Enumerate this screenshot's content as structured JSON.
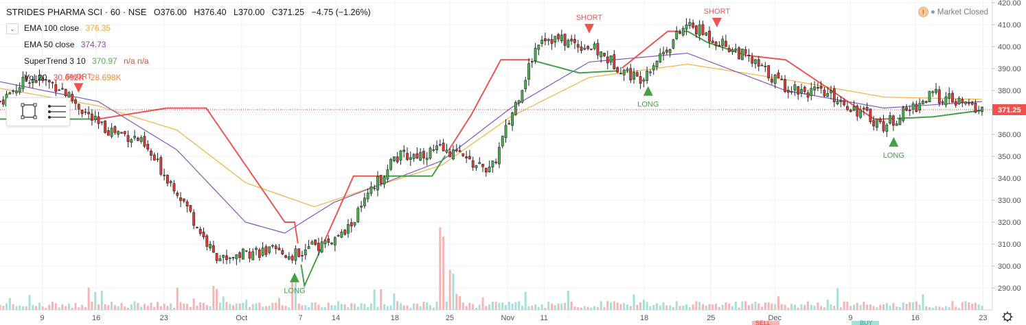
{
  "header": {
    "symbol": "STRIDES PHARMA SCI · 60 · NSE",
    "open": "O376.00",
    "high": "H376.40",
    "low": "L370.00",
    "close": "C371.25",
    "change": "−4.75 (−1.26%)",
    "market_status": "Market Closed"
  },
  "indicators": [
    {
      "label": "EMA 100 close",
      "value": "376.35",
      "color": "#f5a623"
    },
    {
      "label": "EMA 50 close",
      "value": "374.73",
      "color": "#8e44ad"
    },
    {
      "label": "SuperTrend 3 10",
      "value": "370.97",
      "extra": "n/a  n/a",
      "color": "#4caf50"
    },
    {
      "label": "Vol 20",
      "value": "30.692K",
      "extra": "28.698K",
      "color": "#f44336"
    }
  ],
  "price_tag": "371.25",
  "bottom_labels": {
    "sell": "SELL",
    "buy": "BUY"
  },
  "chart_data": {
    "type": "candlestick",
    "title": "STRIDES PHARMA SCI · 60 · NSE",
    "y_ticks": [
      290,
      300,
      310,
      320,
      330,
      340,
      350,
      360,
      370,
      380,
      390,
      400,
      410,
      420
    ],
    "ylim": [
      280,
      421
    ],
    "x_ticks": [
      "9",
      "16",
      "23",
      "Oct",
      "7",
      "14",
      "18",
      "25",
      "Nov",
      "11",
      "18",
      "25",
      "Dec",
      "9",
      "16",
      "23"
    ],
    "last_price": 371.25,
    "series": [
      {
        "name": "Price",
        "x": [
          0,
          0.03,
          0.06,
          0.1,
          0.14,
          0.18,
          0.22,
          0.26,
          0.3,
          0.35,
          0.4,
          0.45,
          0.5,
          0.55,
          0.6,
          0.65,
          0.7,
          0.75,
          0.8,
          0.85,
          0.9,
          0.95,
          1.0
        ],
        "values": [
          375,
          386,
          382,
          364,
          358,
          335,
          303,
          307,
          305,
          314,
          349,
          353,
          343,
          405,
          400,
          385,
          410,
          398,
          382,
          377,
          364,
          378,
          371
        ]
      },
      {
        "name": "EMA 100 close",
        "x": [
          0,
          0.1,
          0.18,
          0.25,
          0.32,
          0.38,
          0.45,
          0.52,
          0.6,
          0.7,
          0.8,
          0.9,
          1.0
        ],
        "values": [
          381,
          373,
          362,
          338,
          327,
          336,
          346,
          368,
          386,
          392,
          385,
          377,
          376
        ]
      },
      {
        "name": "EMA 50 close",
        "x": [
          0,
          0.1,
          0.18,
          0.25,
          0.29,
          0.34,
          0.45,
          0.52,
          0.6,
          0.7,
          0.8,
          0.9,
          1.0
        ],
        "values": [
          384,
          375,
          353,
          320,
          315,
          329,
          348,
          372,
          393,
          397,
          380,
          372,
          375
        ]
      },
      {
        "name": "SuperTrend",
        "x": [
          0,
          0.1,
          0.17,
          0.21,
          0.29,
          0.3,
          0.31,
          0.36,
          0.44,
          0.48,
          0.51,
          0.54,
          0.59,
          0.63,
          0.68,
          0.7,
          0.72,
          0.76,
          0.8,
          0.89,
          0.9,
          0.95,
          1.0
        ],
        "values": [
          367,
          367,
          372,
          372,
          320,
          320,
          291,
          341,
          341,
          369,
          394,
          394,
          388,
          389,
          407,
          407,
          402,
          396,
          394,
          367,
          367,
          368,
          371
        ]
      }
    ],
    "signals": [
      {
        "label": "SHORT",
        "x": 0.08
      },
      {
        "label": "SHORT",
        "x": 0.6
      },
      {
        "label": "SHORT",
        "x": 0.73
      },
      {
        "label": "LONG",
        "x": 0.3
      },
      {
        "label": "LONG",
        "x": 0.66
      },
      {
        "label": "LONG",
        "x": 0.91
      }
    ],
    "volume": {
      "ylim": [
        0,
        150
      ],
      "peaks": [
        {
          "x": 0.22,
          "value": 34
        },
        {
          "x": 0.3,
          "value": 45
        },
        {
          "x": 0.45,
          "value": 110
        },
        {
          "x": 0.46,
          "value": 58
        }
      ]
    }
  }
}
